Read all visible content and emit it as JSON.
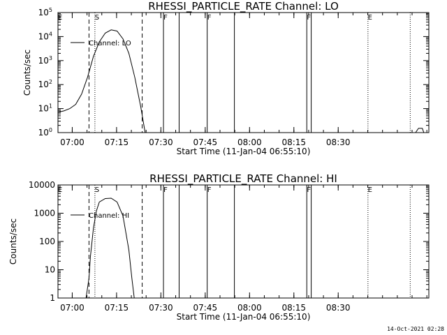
{
  "chart_data": [
    {
      "type": "line",
      "title": "RHESSI_PARTICLE_RATE Channel: LO",
      "xlabel": "Start Time (11-Jan-04 06:55:10)",
      "ylabel": "Counts/sec",
      "yscale": "log",
      "ylim": [
        1,
        100000
      ],
      "ytick_labels": [
        "10^0",
        "10^1",
        "10^2",
        "10^3",
        "10^4",
        "10^5"
      ],
      "xtick_labels": [
        "07:00",
        "07:15",
        "07:30",
        "07:45",
        "08:00",
        "08:15",
        "08:30"
      ],
      "xlim_minutes": [
        0,
        125.5
      ],
      "legend": {
        "label": "Channel: LO",
        "placement": "top-left"
      },
      "series": [
        {
          "name": "Channel: LO",
          "points": [
            {
              "x": 0.0,
              "y": 7
            },
            {
              "x": 2.0,
              "y": 8
            },
            {
              "x": 4.0,
              "y": 10
            },
            {
              "x": 6.0,
              "y": 15
            },
            {
              "x": 8.0,
              "y": 40
            },
            {
              "x": 10.0,
              "y": 200
            },
            {
              "x": 12.0,
              "y": 1500
            },
            {
              "x": 14.0,
              "y": 6000
            },
            {
              "x": 16.0,
              "y": 14000
            },
            {
              "x": 18.0,
              "y": 19000
            },
            {
              "x": 20.0,
              "y": 17000
            },
            {
              "x": 22.0,
              "y": 8000
            },
            {
              "x": 24.0,
              "y": 2000
            },
            {
              "x": 26.0,
              "y": 200
            },
            {
              "x": 28.0,
              "y": 12
            },
            {
              "x": 29.5,
              "y": 1
            },
            {
              "x": 121.0,
              "y": 1
            },
            {
              "x": 122.0,
              "y": 1.5
            },
            {
              "x": 123.3,
              "y": 1.5
            },
            {
              "x": 123.8,
              "y": 1
            }
          ]
        }
      ],
      "markers": [
        {
          "label": "E",
          "style": "dotted",
          "x_minutes": 0
        },
        {
          "label": "",
          "style": "dashed",
          "x_minutes": 10.5
        },
        {
          "label": "S",
          "style": "dotted",
          "x_minutes": 12.5
        },
        {
          "label": "",
          "style": "dashed",
          "x_minutes": 28.5
        },
        {
          "label": "F",
          "style": "solid",
          "x_minutes": 35.7
        },
        {
          "label": "",
          "style": "solid",
          "x_minutes": 41.0
        },
        {
          "label": "F",
          "style": "solid",
          "x_minutes": 50.5
        },
        {
          "label": "",
          "style": "solid",
          "x_minutes": 59.7
        },
        {
          "label": "F",
          "style": "solid",
          "x_minutes": 84.2
        },
        {
          "label": "",
          "style": "solid",
          "x_minutes": 85.7
        },
        {
          "label": "E",
          "style": "dotted",
          "x_minutes": 104.9
        },
        {
          "label": "",
          "style": "dotted",
          "x_minutes": 119.2
        }
      ]
    },
    {
      "type": "line",
      "title": "RHESSI_PARTICLE_RATE Channel: HI",
      "xlabel": "Start Time (11-Jan-04 06:55:10)",
      "ylabel": "Counts/sec",
      "yscale": "log",
      "ylim": [
        1,
        10000
      ],
      "ytick_labels": [
        "1",
        "10",
        "100",
        "1000",
        "10000"
      ],
      "xtick_labels": [
        "07:00",
        "07:15",
        "07:30",
        "07:45",
        "08:00",
        "08:15",
        "08:30"
      ],
      "xlim_minutes": [
        0,
        125.5
      ],
      "legend": {
        "label": "Channel: HI",
        "placement": "top-left"
      },
      "series": [
        {
          "name": "Channel: HI",
          "points": [
            {
              "x": 9.5,
              "y": 1
            },
            {
              "x": 10.5,
              "y": 5
            },
            {
              "x": 11.0,
              "y": 30
            },
            {
              "x": 12.0,
              "y": 300
            },
            {
              "x": 13.0,
              "y": 1200
            },
            {
              "x": 14.0,
              "y": 2500
            },
            {
              "x": 16.0,
              "y": 3300
            },
            {
              "x": 18.0,
              "y": 3400
            },
            {
              "x": 20.0,
              "y": 2500
            },
            {
              "x": 22.0,
              "y": 800
            },
            {
              "x": 24.0,
              "y": 50
            },
            {
              "x": 25.0,
              "y": 5
            },
            {
              "x": 25.8,
              "y": 1
            }
          ]
        }
      ],
      "markers": [
        {
          "label": "E",
          "style": "dotted",
          "x_minutes": 0
        },
        {
          "label": "",
          "style": "dashed",
          "x_minutes": 10.5
        },
        {
          "label": "S",
          "style": "dotted",
          "x_minutes": 12.5
        },
        {
          "label": "",
          "style": "dashed",
          "x_minutes": 28.5
        },
        {
          "label": "F",
          "style": "solid",
          "x_minutes": 35.7
        },
        {
          "label": "",
          "style": "solid",
          "x_minutes": 41.0
        },
        {
          "label": "F",
          "style": "solid",
          "x_minutes": 50.5
        },
        {
          "label": "",
          "style": "solid",
          "x_minutes": 59.7
        },
        {
          "label": "F",
          "style": "solid",
          "x_minutes": 84.2
        },
        {
          "label": "",
          "style": "solid",
          "x_minutes": 85.7
        },
        {
          "label": "E",
          "style": "dotted",
          "x_minutes": 104.9
        },
        {
          "label": "",
          "style": "dotted",
          "x_minutes": 119.2
        }
      ]
    }
  ],
  "footer": {
    "timestamp": "14-Oct-2021 02:28"
  }
}
